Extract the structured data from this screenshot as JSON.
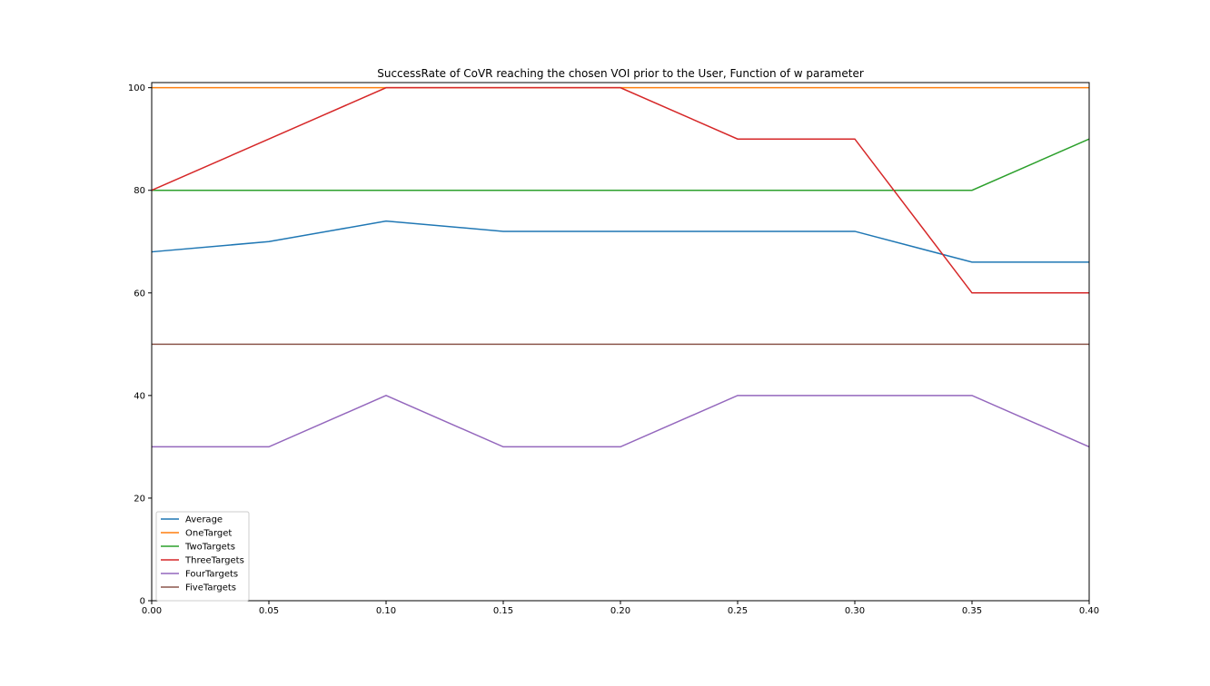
{
  "chart_data": {
    "type": "line",
    "title": "SuccessRate of CoVR reaching the chosen VOI prior to the User, Function of w parameter",
    "xlabel": "",
    "ylabel": "",
    "xlim": [
      0.0,
      0.4
    ],
    "ylim": [
      0,
      101
    ],
    "x": [
      0.0,
      0.05,
      0.1,
      0.15,
      0.2,
      0.25,
      0.3,
      0.35,
      0.4
    ],
    "xticks": [
      "0.00",
      "0.05",
      "0.10",
      "0.15",
      "0.20",
      "0.25",
      "0.30",
      "0.35",
      "0.40"
    ],
    "yticks": [
      0,
      20,
      40,
      60,
      80,
      100
    ],
    "grid": false,
    "legend_position": "lower-left",
    "series": [
      {
        "name": "Average",
        "color": "#1f77b4",
        "values": [
          68,
          70,
          74,
          72,
          72,
          72,
          72,
          66,
          66
        ]
      },
      {
        "name": "OneTarget",
        "color": "#ff7f0e",
        "values": [
          100,
          100,
          100,
          100,
          100,
          100,
          100,
          100,
          100
        ]
      },
      {
        "name": "TwoTargets",
        "color": "#2ca02c",
        "values": [
          80,
          80,
          80,
          80,
          80,
          80,
          80,
          80,
          90
        ]
      },
      {
        "name": "ThreeTargets",
        "color": "#d62728",
        "values": [
          80,
          90,
          100,
          100,
          100,
          90,
          90,
          60,
          60
        ]
      },
      {
        "name": "FourTargets",
        "color": "#9467bd",
        "values": [
          30,
          30,
          40,
          30,
          30,
          40,
          40,
          40,
          30
        ]
      },
      {
        "name": "FiveTargets",
        "color": "#8c564b",
        "values": [
          50,
          50,
          50,
          50,
          50,
          50,
          50,
          50,
          50
        ]
      }
    ]
  }
}
